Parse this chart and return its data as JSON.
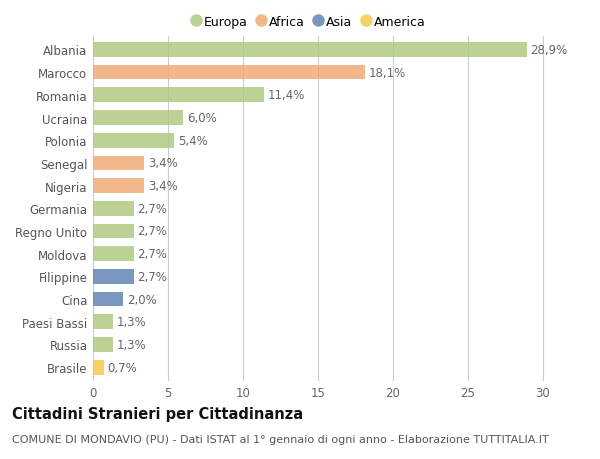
{
  "categories": [
    "Albania",
    "Marocco",
    "Romania",
    "Ucraina",
    "Polonia",
    "Senegal",
    "Nigeria",
    "Germania",
    "Regno Unito",
    "Moldova",
    "Filippine",
    "Cina",
    "Paesi Bassi",
    "Russia",
    "Brasile"
  ],
  "values": [
    28.9,
    18.1,
    11.4,
    6.0,
    5.4,
    3.4,
    3.4,
    2.7,
    2.7,
    2.7,
    2.7,
    2.0,
    1.3,
    1.3,
    0.7
  ],
  "labels": [
    "28,9%",
    "18,1%",
    "11,4%",
    "6,0%",
    "5,4%",
    "3,4%",
    "3,4%",
    "2,7%",
    "2,7%",
    "2,7%",
    "2,7%",
    "2,0%",
    "1,3%",
    "1,3%",
    "0,7%"
  ],
  "colors": [
    "#adc97e",
    "#f0a872",
    "#adc97e",
    "#adc97e",
    "#adc97e",
    "#f0a872",
    "#f0a872",
    "#adc97e",
    "#adc97e",
    "#adc97e",
    "#5b80b4",
    "#5b80b4",
    "#adc97e",
    "#adc97e",
    "#f5c842"
  ],
  "legend_labels": [
    "Europa",
    "Africa",
    "Asia",
    "America"
  ],
  "legend_colors": [
    "#adc97e",
    "#f0a872",
    "#5b80b4",
    "#f5c842"
  ],
  "xlim": [
    0,
    32
  ],
  "xticks": [
    0,
    5,
    10,
    15,
    20,
    25,
    30
  ],
  "title": "Cittadini Stranieri per Cittadinanza",
  "subtitle": "COMUNE DI MONDAVIO (PU) - Dati ISTAT al 1° gennaio di ogni anno - Elaborazione TUTTITALIA.IT",
  "background_color": "#ffffff",
  "grid_color": "#cccccc",
  "label_fontsize": 8.5,
  "title_fontsize": 10.5,
  "subtitle_fontsize": 8,
  "bar_height": 0.65,
  "bar_alpha": 0.82
}
